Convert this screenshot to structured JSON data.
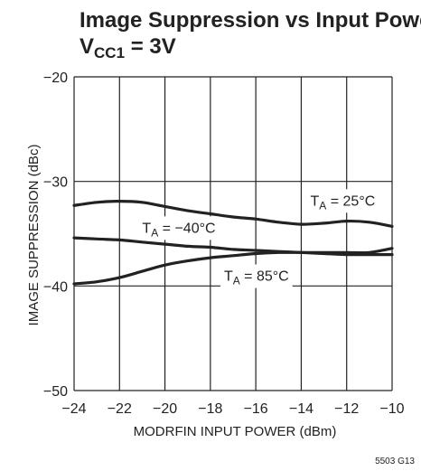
{
  "chart_data": {
    "type": "line",
    "title": "Image Suppression vs Input Power",
    "subtitle": {
      "prefix": "V",
      "sub": "CC1",
      "suffix": " = 3V"
    },
    "xlabel": "MODRFIN INPUT POWER (dBm)",
    "ylabel": "IMAGE SUPPRESSION (dBc)",
    "xlim": [
      -24,
      -10
    ],
    "ylim": [
      -50,
      -20
    ],
    "xticks": [
      "−24",
      "−22",
      "−20",
      "−18",
      "−16",
      "−14",
      "−12",
      "−10"
    ],
    "yticks": [
      "−20",
      "−30",
      "−40",
      "−50"
    ],
    "grid": true,
    "series": [
      {
        "name": {
          "prefix": "T",
          "sub": "A",
          "suffix": " = 25°C"
        },
        "x": [
          -24,
          -23,
          -22,
          -21,
          -20,
          -19,
          -18,
          -17,
          -16,
          -15,
          -14,
          -13,
          -12,
          -11,
          -10
        ],
        "y": [
          -32.3,
          -32.0,
          -31.9,
          -32.0,
          -32.4,
          -32.8,
          -33.1,
          -33.4,
          -33.6,
          -33.9,
          -34.1,
          -34.0,
          -33.8,
          -33.9,
          -34.3
        ]
      },
      {
        "name": {
          "prefix": "T",
          "sub": "A",
          "suffix": " = −40°C"
        },
        "x": [
          -24,
          -23,
          -22,
          -21,
          -20,
          -19,
          -18,
          -17,
          -16,
          -15,
          -14,
          -13,
          -12,
          -11,
          -10
        ],
        "y": [
          -35.4,
          -35.5,
          -35.6,
          -35.8,
          -36.0,
          -36.2,
          -36.3,
          -36.5,
          -36.6,
          -36.7,
          -36.8,
          -36.9,
          -37.0,
          -37.0,
          -37.0
        ]
      },
      {
        "name": {
          "prefix": "T",
          "sub": "A",
          "suffix": " = 85°C"
        },
        "x": [
          -24,
          -23,
          -22,
          -21,
          -20,
          -19,
          -18,
          -17,
          -16,
          -15,
          -14,
          -13,
          -12,
          -11,
          -10
        ],
        "y": [
          -39.8,
          -39.6,
          -39.2,
          -38.6,
          -38.0,
          -37.6,
          -37.3,
          -37.1,
          -36.9,
          -36.8,
          -36.8,
          -36.8,
          -36.8,
          -36.8,
          -36.4
        ]
      }
    ],
    "annotations": [
      {
        "series": 0,
        "x": -13.6,
        "y": -32.3
      },
      {
        "series": 1,
        "x": -21.0,
        "y": -34.9
      },
      {
        "series": 2,
        "x": -17.4,
        "y": -39.5
      }
    ],
    "footer": "5503 G13"
  }
}
